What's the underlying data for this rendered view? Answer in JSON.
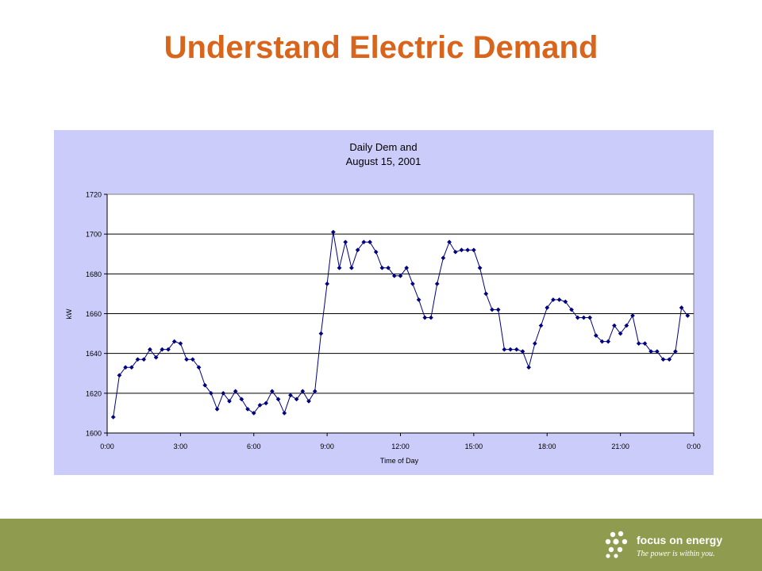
{
  "slide": {
    "title": "Understand Electric Demand"
  },
  "footer": {
    "logo_text": "focus on energy",
    "tagline": "The power is within you."
  },
  "colors": {
    "title": "#d9651c",
    "chart_background": "#ccccfa",
    "plot_background": "#ffffff",
    "series": "#000080",
    "footer": "#8f9c4f"
  },
  "chart_data": {
    "type": "line",
    "title": [
      "Daily Dem and",
      "August 15, 2001"
    ],
    "xlabel": "Time of Day",
    "ylabel": "kW",
    "ylim": [
      1600,
      1720
    ],
    "yticks": [
      1600,
      1620,
      1640,
      1660,
      1680,
      1700,
      1720
    ],
    "xlim": [
      0,
      24
    ],
    "xticks": [
      0,
      3,
      6,
      9,
      12,
      15,
      18,
      21,
      24
    ],
    "xtick_labels": [
      "0:00",
      "3:00",
      "6:00",
      "9:00",
      "12:00",
      "15:00",
      "18:00",
      "21:00",
      "0:00"
    ],
    "grid": "horizontal",
    "legend": "none",
    "marker": "diamond",
    "series": [
      {
        "x": [
          0.25,
          0.5,
          0.75,
          1.0,
          1.25,
          1.5,
          1.75,
          2.0,
          2.25,
          2.5,
          2.75,
          3.0,
          3.25,
          3.5,
          3.75,
          4.0,
          4.25,
          4.5,
          4.75,
          5.0,
          5.25,
          5.5,
          5.75,
          6.0,
          6.25,
          6.5,
          6.75,
          7.0,
          7.25,
          7.5,
          7.75,
          8.0,
          8.25,
          8.5,
          8.75,
          9.0,
          9.25,
          9.5,
          9.75,
          10.0,
          10.25,
          10.5,
          10.75,
          11.0,
          11.25,
          11.5,
          11.75,
          12.0,
          12.25,
          12.5,
          12.75,
          13.0,
          13.25,
          13.5,
          13.75,
          14.0,
          14.25,
          14.5,
          14.75,
          15.0,
          15.25,
          15.5,
          15.75,
          16.0,
          16.25,
          16.5,
          16.75,
          17.0,
          17.25,
          17.5,
          17.75,
          18.0,
          18.25,
          18.5,
          18.75,
          19.0,
          19.25,
          19.5,
          19.75,
          20.0,
          20.25,
          20.5,
          20.75,
          21.0,
          21.25,
          21.5,
          21.75,
          22.0,
          22.25,
          22.5,
          22.75,
          23.0,
          23.25,
          23.5,
          23.75
        ],
        "y": [
          1608,
          1629,
          1633,
          1633,
          1637,
          1637,
          1642,
          1638,
          1642,
          1642,
          1646,
          1645,
          1637,
          1637,
          1633,
          1624,
          1620,
          1612,
          1620,
          1616,
          1621,
          1617,
          1612,
          1610,
          1614,
          1615,
          1621,
          1617,
          1610,
          1619,
          1617,
          1621,
          1616,
          1621,
          1650,
          1675,
          1701,
          1683,
          1696,
          1683,
          1692,
          1696,
          1696,
          1691,
          1683,
          1683,
          1679,
          1679,
          1683,
          1675,
          1667,
          1658,
          1658,
          1675,
          1688,
          1696,
          1691,
          1692,
          1692,
          1692,
          1683,
          1670,
          1662,
          1662,
          1642,
          1642,
          1642,
          1641,
          1633,
          1645,
          1654,
          1663,
          1667,
          1667,
          1666,
          1662,
          1658,
          1658,
          1658,
          1649,
          1646,
          1646,
          1654,
          1650,
          1654,
          1659,
          1645,
          1645,
          1641,
          1641,
          1637,
          1637,
          1641,
          1663,
          1659
        ]
      }
    ]
  }
}
